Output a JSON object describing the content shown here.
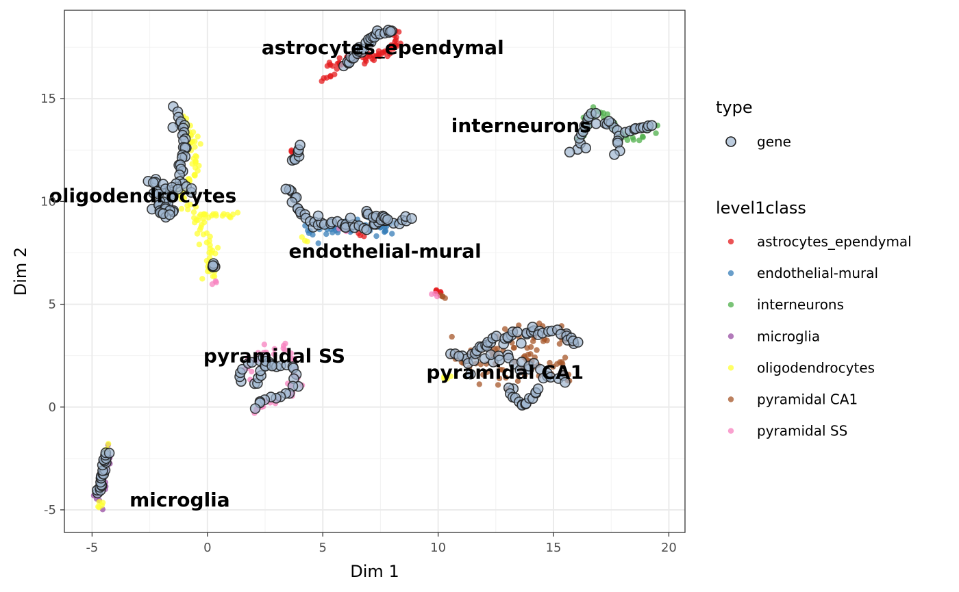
{
  "chart_data": {
    "type": "scatter",
    "xlabel": "Dim 1",
    "ylabel": "Dim 2",
    "xlim": [
      -6.2,
      20.7
    ],
    "ylim": [
      -6.1,
      19.3
    ],
    "x_ticks": [
      -5,
      0,
      5,
      10,
      15,
      20
    ],
    "y_ticks": [
      -5,
      0,
      5,
      10,
      15
    ],
    "x_tick_labels": [
      "-5",
      "0",
      "5",
      "10",
      "15",
      "20"
    ],
    "y_tick_labels": [
      "-5",
      "0",
      "5",
      "10",
      "15"
    ],
    "grid": true,
    "legend_placement": "right",
    "legends": {
      "type": {
        "title": "type",
        "entries": [
          {
            "label": "gene",
            "fill": "#9fb6d0",
            "stroke": "#1c1c1c"
          }
        ]
      },
      "level1class": {
        "title": "level1class",
        "entries": [
          {
            "label": "astrocytes_ependymal",
            "color": "#e41a1c"
          },
          {
            "label": "endothelial-mural",
            "color": "#377eb8"
          },
          {
            "label": "interneurons",
            "color": "#4daf4a"
          },
          {
            "label": "microglia",
            "color": "#984ea3"
          },
          {
            "label": "oligodendrocytes",
            "color": "#ffff33"
          },
          {
            "label": "pyramidal CA1",
            "color": "#a65628"
          },
          {
            "label": "pyramidal SS",
            "color": "#f781bf"
          }
        ]
      }
    },
    "cluster_labels": [
      {
        "text": "astrocytes_ependymal",
        "x": 7.6,
        "y": 17.5
      },
      {
        "text": "interneurons",
        "x": 13.6,
        "y": 13.7
      },
      {
        "text": "oligodendrocytes",
        "x": -2.8,
        "y": 10.3
      },
      {
        "text": "endothelial-mural",
        "x": 7.7,
        "y": 7.6
      },
      {
        "text": "pyramidal SS",
        "x": 2.9,
        "y": 2.5
      },
      {
        "text": "pyramidal CA1",
        "x": 12.9,
        "y": 1.7
      },
      {
        "text": "microglia",
        "x": -1.2,
        "y": -4.5
      }
    ],
    "cell_segments": [
      {
        "class": "astrocytes_ependymal",
        "n": 60,
        "jitter": 0.12,
        "pts": [
          [
            5.3,
            16.4
          ],
          [
            6.3,
            17.1
          ],
          [
            7.2,
            17.0
          ],
          [
            8.1,
            17.5
          ],
          [
            8.1,
            18.3
          ]
        ]
      },
      {
        "class": "astrocytes_ependymal",
        "n": 6,
        "jitter": 0.05,
        "pts": [
          [
            5.0,
            15.9
          ],
          [
            5.5,
            16.2
          ]
        ]
      },
      {
        "class": "astrocytes_ependymal",
        "n": 6,
        "jitter": 0.05,
        "pts": [
          [
            9.9,
            5.7
          ],
          [
            10.1,
            5.5
          ]
        ]
      },
      {
        "class": "astrocytes_ependymal",
        "n": 3,
        "jitter": 0.05,
        "pts": [
          [
            3.6,
            12.4
          ],
          [
            3.6,
            12.5
          ]
        ]
      },
      {
        "class": "astrocytes_ependymal",
        "n": 3,
        "jitter": 0.05,
        "pts": [
          [
            6.5,
            8.4
          ],
          [
            6.8,
            8.3
          ]
        ]
      },
      {
        "class": "endothelial-mural",
        "n": 50,
        "jitter": 0.18,
        "pts": [
          [
            4.4,
            8.6
          ],
          [
            5.5,
            8.7
          ],
          [
            6.4,
            8.8
          ],
          [
            7.3,
            8.6
          ],
          [
            8.2,
            9.0
          ]
        ]
      },
      {
        "class": "interneurons",
        "n": 34,
        "jitter": 0.12,
        "pts": [
          [
            16.2,
            12.8
          ],
          [
            16.6,
            14.5
          ],
          [
            17.3,
            14.1
          ],
          [
            17.9,
            13.3
          ],
          [
            18.4,
            12.9
          ],
          [
            19.4,
            13.5
          ]
        ]
      },
      {
        "class": "microglia",
        "n": 14,
        "jitter": 0.1,
        "pts": [
          [
            -4.9,
            -4.3
          ],
          [
            -4.6,
            -4.7
          ],
          [
            -4.2,
            -2.1
          ]
        ]
      },
      {
        "class": "oligodendrocytes",
        "n": 90,
        "jitter": 0.14,
        "pts": [
          [
            -1.0,
            14.2
          ],
          [
            -0.6,
            13.0
          ],
          [
            -0.5,
            11.4
          ],
          [
            -1.2,
            10.3
          ],
          [
            -0.5,
            9.4
          ],
          [
            0.1,
            8.0
          ],
          [
            0.1,
            6.8
          ],
          [
            0.2,
            6.3
          ]
        ]
      },
      {
        "class": "oligodendrocytes",
        "n": 16,
        "jitter": 0.06,
        "pts": [
          [
            -0.3,
            9.4
          ],
          [
            0.5,
            9.3
          ],
          [
            1.2,
            9.4
          ]
        ]
      },
      {
        "class": "oligodendrocytes",
        "n": 6,
        "jitter": 0.08,
        "pts": [
          [
            -4.4,
            -1.8
          ],
          [
            -4.5,
            -2.5
          ]
        ]
      },
      {
        "class": "oligodendrocytes",
        "n": 5,
        "jitter": 0.08,
        "pts": [
          [
            -4.8,
            -4.9
          ],
          [
            -4.6,
            -4.6
          ]
        ]
      },
      {
        "class": "oligodendrocytes",
        "n": 4,
        "jitter": 0.05,
        "pts": [
          [
            10.2,
            1.5
          ],
          [
            10.5,
            1.4
          ]
        ]
      },
      {
        "class": "oligodendrocytes",
        "n": 3,
        "jitter": 0.05,
        "pts": [
          [
            4.1,
            8.2
          ],
          [
            4.3,
            8.1
          ]
        ]
      },
      {
        "class": "pyramidal CA1",
        "n": 55,
        "jitter": 0.35,
        "pts": [
          [
            10.6,
            2.5
          ],
          [
            11.5,
            2.1
          ],
          [
            12.6,
            2.7
          ],
          [
            13.7,
            3.4
          ],
          [
            14.9,
            3.5
          ],
          [
            15.9,
            3.1
          ]
        ]
      },
      {
        "class": "pyramidal CA1",
        "n": 45,
        "jitter": 0.4,
        "pts": [
          [
            12.3,
            1.9
          ],
          [
            13.2,
            1.6
          ],
          [
            14.2,
            2.3
          ],
          [
            15.2,
            2.0
          ],
          [
            15.6,
            1.4
          ]
        ]
      },
      {
        "class": "pyramidal CA1",
        "n": 4,
        "jitter": 0.04,
        "pts": [
          [
            10.1,
            5.4
          ],
          [
            10.3,
            5.3
          ]
        ]
      },
      {
        "class": "pyramidal CA1",
        "n": 3,
        "jitter": 0.05,
        "pts": [
          [
            0.3,
            6.9
          ],
          [
            0.4,
            6.8
          ]
        ]
      },
      {
        "class": "pyramidal SS",
        "n": 40,
        "jitter": 0.12,
        "pts": [
          [
            1.5,
            1.4
          ],
          [
            1.8,
            2.0
          ],
          [
            2.4,
            2.7
          ],
          [
            3.1,
            2.6
          ],
          [
            3.6,
            2.9
          ],
          [
            3.9,
            1.6
          ],
          [
            3.8,
            0.5
          ],
          [
            2.8,
            0.3
          ],
          [
            2.0,
            -0.1
          ]
        ]
      },
      {
        "class": "pyramidal SS",
        "n": 3,
        "jitter": 0.05,
        "pts": [
          [
            0.3,
            6.0
          ],
          [
            0.4,
            6.1
          ]
        ]
      },
      {
        "class": "pyramidal SS",
        "n": 3,
        "jitter": 0.05,
        "pts": [
          [
            9.8,
            5.5
          ],
          [
            9.9,
            5.4
          ]
        ]
      },
      {
        "class": "pyramidal SS",
        "n": 3,
        "jitter": 0.05,
        "pts": [
          [
            5.8,
            8.7
          ],
          [
            6.0,
            8.6
          ]
        ]
      }
    ],
    "gene_segments": [
      {
        "n": 28,
        "jitter": 0.08,
        "pts": [
          [
            5.9,
            16.6
          ],
          [
            6.5,
            17.2
          ],
          [
            7.0,
            17.9
          ],
          [
            7.6,
            18.3
          ],
          [
            8.0,
            18.4
          ]
        ]
      },
      {
        "n": 7,
        "jitter": 0.06,
        "pts": [
          [
            3.8,
            11.9
          ],
          [
            3.9,
            12.3
          ],
          [
            4.0,
            12.6
          ]
        ]
      },
      {
        "n": 36,
        "jitter": 0.1,
        "pts": [
          [
            -1.4,
            14.4
          ],
          [
            -1.0,
            13.7
          ],
          [
            -1.0,
            12.3
          ],
          [
            -1.2,
            11.0
          ],
          [
            -1.9,
            10.0
          ],
          [
            -1.5,
            9.4
          ]
        ]
      },
      {
        "n": 14,
        "jitter": 0.15,
        "pts": [
          [
            -2.6,
            11.2
          ],
          [
            -2.0,
            10.8
          ],
          [
            -1.5,
            10.6
          ],
          [
            -0.7,
            10.5
          ]
        ]
      },
      {
        "n": 18,
        "jitter": 0.14,
        "pts": [
          [
            -2.2,
            10.2
          ],
          [
            -2.1,
            9.6
          ],
          [
            -1.6,
            9.2
          ]
        ]
      },
      {
        "n": 6,
        "jitter": 0.06,
        "pts": [
          [
            0.2,
            6.8
          ],
          [
            0.3,
            6.9
          ]
        ]
      },
      {
        "n": 42,
        "jitter": 0.12,
        "pts": [
          [
            3.6,
            10.5
          ],
          [
            4.1,
            9.6
          ],
          [
            4.5,
            8.9
          ],
          [
            5.6,
            9.0
          ],
          [
            6.5,
            8.7
          ],
          [
            7.2,
            8.9
          ],
          [
            8.0,
            9.0
          ],
          [
            8.8,
            9.3
          ]
        ]
      },
      {
        "n": 10,
        "jitter": 0.1,
        "pts": [
          [
            6.8,
            9.4
          ],
          [
            7.2,
            9.3
          ],
          [
            7.8,
            9.2
          ]
        ]
      },
      {
        "n": 22,
        "jitter": 0.08,
        "pts": [
          [
            16.0,
            12.6
          ],
          [
            16.3,
            13.5
          ],
          [
            16.6,
            14.4
          ],
          [
            17.0,
            13.9
          ],
          [
            17.6,
            13.8
          ],
          [
            17.8,
            12.8
          ],
          [
            17.7,
            12.3
          ]
        ]
      },
      {
        "n": 10,
        "jitter": 0.08,
        "pts": [
          [
            18.2,
            13.3
          ],
          [
            18.6,
            13.5
          ],
          [
            19.1,
            13.6
          ],
          [
            19.3,
            13.7
          ]
        ]
      },
      {
        "n": 28,
        "jitter": 0.08,
        "pts": [
          [
            1.4,
            1.2
          ],
          [
            1.7,
            2.0
          ],
          [
            2.4,
            2.4
          ],
          [
            2.8,
            2.0
          ],
          [
            3.4,
            2.1
          ],
          [
            3.8,
            2.0
          ],
          [
            3.9,
            1.1
          ],
          [
            3.3,
            0.5
          ],
          [
            2.6,
            0.4
          ],
          [
            2.0,
            -0.1
          ]
        ]
      },
      {
        "n": 8,
        "jitter": 0.06,
        "pts": [
          [
            2.1,
            1.0
          ],
          [
            2.3,
            1.5
          ],
          [
            2.6,
            2.3
          ]
        ]
      },
      {
        "n": 44,
        "jitter": 0.15,
        "pts": [
          [
            10.6,
            2.6
          ],
          [
            11.4,
            2.4
          ],
          [
            12.2,
            3.1
          ],
          [
            13.0,
            3.5
          ],
          [
            13.9,
            3.7
          ],
          [
            14.9,
            3.7
          ],
          [
            15.5,
            3.5
          ],
          [
            16.0,
            3.1
          ]
        ]
      },
      {
        "n": 20,
        "jitter": 0.15,
        "pts": [
          [
            12.2,
            2.2
          ],
          [
            12.9,
            2.5
          ],
          [
            13.3,
            2.1
          ],
          [
            14.4,
            2.0
          ],
          [
            15.3,
            1.3
          ]
        ]
      },
      {
        "n": 16,
        "jitter": 0.1,
        "pts": [
          [
            13.1,
            0.9
          ],
          [
            13.4,
            0.5
          ],
          [
            13.7,
            0.1
          ],
          [
            14.0,
            0.3
          ],
          [
            14.3,
            0.9
          ]
        ]
      },
      {
        "n": 22,
        "jitter": 0.06,
        "pts": [
          [
            -4.8,
            -4.2
          ],
          [
            -4.7,
            -3.8
          ],
          [
            -4.5,
            -3.2
          ],
          [
            -4.4,
            -2.4
          ],
          [
            -4.3,
            -2.2
          ]
        ]
      }
    ],
    "gene_outliers": [
      [
        15.7,
        12.4
      ],
      [
        16.4,
        12.6
      ],
      [
        17.4,
        13.9
      ],
      [
        13.6,
        3.1
      ],
      [
        11.4,
        1.6
      ],
      [
        15.5,
        1.2
      ],
      [
        6.2,
        9.2
      ],
      [
        3.4,
        10.6
      ],
      [
        -1.5,
        13.6
      ],
      [
        2.8,
        2.0
      ],
      [
        4.8,
        9.3
      ]
    ]
  }
}
